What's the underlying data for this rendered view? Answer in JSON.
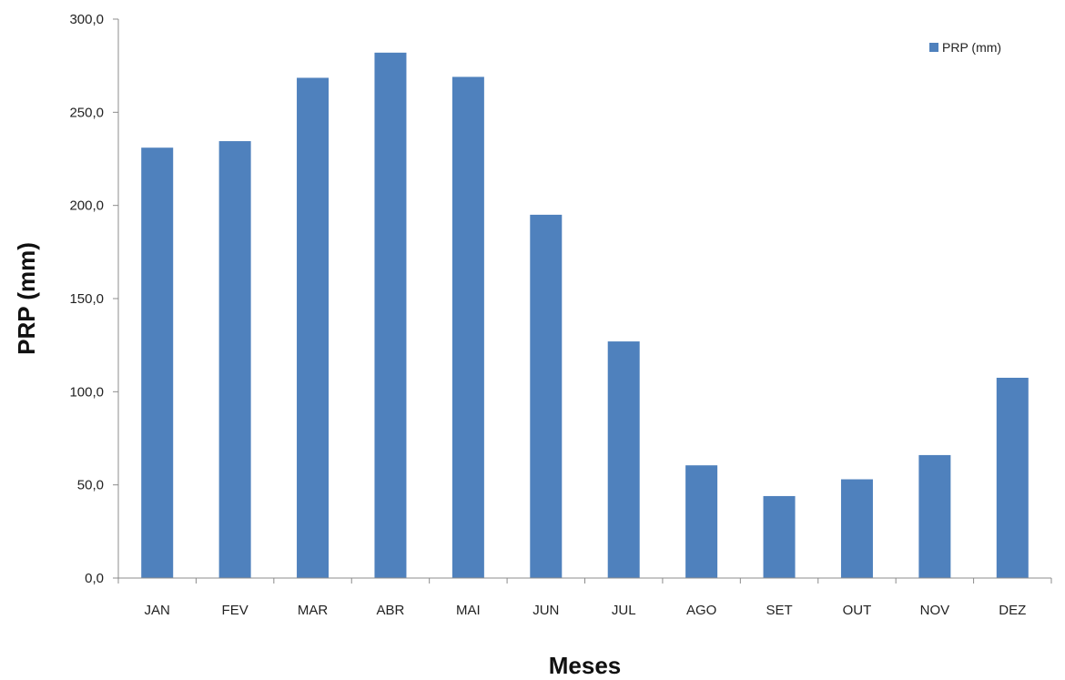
{
  "chart_data": {
    "type": "bar",
    "categories": [
      "JAN",
      "FEV",
      "MAR",
      "ABR",
      "MAI",
      "JUN",
      "JUL",
      "AGO",
      "SET",
      "OUT",
      "NOV",
      "DEZ"
    ],
    "series": [
      {
        "name": "PRP (mm)",
        "color": "#4f81bd",
        "values": [
          231.0,
          234.5,
          268.5,
          282.0,
          269.0,
          195.0,
          127.0,
          60.5,
          44.0,
          53.0,
          66.0,
          107.5
        ]
      }
    ],
    "title": "",
    "xlabel": "Meses",
    "ylabel": "PRP (mm)",
    "ylim": [
      0,
      300
    ],
    "yticks": [
      0,
      50,
      100,
      150,
      200,
      250,
      300
    ],
    "ytick_labels": [
      "0,0",
      "50,0",
      "100,0",
      "150,0",
      "200,0",
      "250,0",
      "300,0"
    ],
    "grid": false,
    "legend_position": "top-right"
  }
}
